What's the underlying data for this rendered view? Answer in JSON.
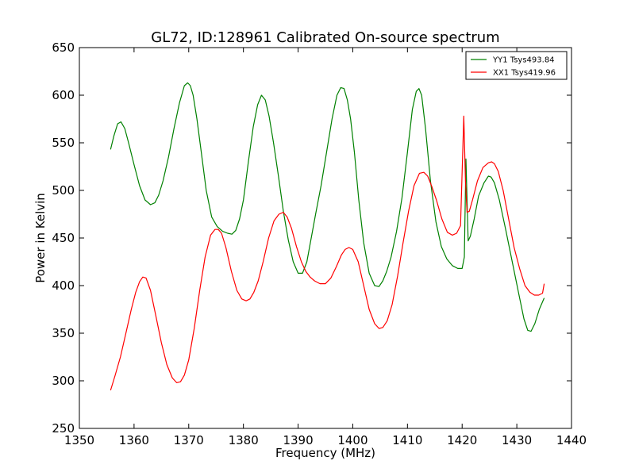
{
  "chart_data": {
    "type": "line",
    "title": "GL72, ID:128961 Calibrated On-source spectrum",
    "xlabel": "Frequency (MHz)",
    "ylabel": "Power in Kelvin",
    "xlim": [
      1350,
      1440
    ],
    "ylim": [
      250,
      650
    ],
    "xticks": [
      1350,
      1360,
      1370,
      1380,
      1390,
      1400,
      1410,
      1420,
      1430,
      1440
    ],
    "yticks": [
      250,
      300,
      350,
      400,
      450,
      500,
      550,
      600,
      650
    ],
    "grid": false,
    "legend_position": "top-right",
    "series": [
      {
        "name": "YY1 Tsys493.84",
        "color": "#008000",
        "x": [
          1355.7,
          1356.3,
          1357.0,
          1357.6,
          1358.3,
          1359.0,
          1360.0,
          1361.0,
          1362.0,
          1363.0,
          1363.8,
          1364.5,
          1365.3,
          1366.3,
          1367.3,
          1368.3,
          1369.2,
          1369.8,
          1370.3,
          1370.8,
          1371.5,
          1372.3,
          1373.2,
          1374.2,
          1375.2,
          1376.2,
          1377.1,
          1377.9,
          1378.6,
          1379.3,
          1380.0,
          1380.9,
          1381.8,
          1382.6,
          1383.3,
          1384.0,
          1384.7,
          1385.5,
          1386.4,
          1387.3,
          1388.2,
          1389.1,
          1390.0,
          1390.8,
          1391.6,
          1392.4,
          1393.2,
          1394.2,
          1395.2,
          1396.2,
          1397.1,
          1397.8,
          1398.4,
          1399.0,
          1399.6,
          1400.3,
          1401.1,
          1402.0,
          1403.0,
          1404.0,
          1404.8,
          1405.5,
          1406.2,
          1407.0,
          1408.0,
          1409.0,
          1410.0,
          1410.9,
          1411.6,
          1412.1,
          1412.6,
          1413.3,
          1414.2,
          1415.2,
          1416.2,
          1417.2,
          1418.2,
          1419.2,
          1420.0,
          1420.4,
          1420.7,
          1421.1,
          1421.5,
          1422.2,
          1423.0,
          1424.0,
          1424.8,
          1425.3,
          1425.9,
          1426.8,
          1428.0,
          1429.2,
          1430.4,
          1431.3,
          1432.0,
          1432.6,
          1433.3,
          1434.1,
          1435.0
        ],
        "values": [
          543,
          557,
          570,
          572,
          565,
          550,
          527,
          505,
          490,
          485,
          487,
          495,
          510,
          535,
          565,
          592,
          610,
          613,
          610,
          600,
          575,
          540,
          500,
          472,
          462,
          457,
          455,
          454,
          458,
          470,
          490,
          530,
          567,
          590,
          600,
          595,
          578,
          550,
          515,
          478,
          448,
          425,
          413,
          413,
          425,
          450,
          475,
          505,
          540,
          575,
          600,
          608,
          607,
          595,
          575,
          540,
          490,
          445,
          413,
          400,
          399,
          405,
          415,
          430,
          457,
          492,
          540,
          585,
          604,
          607,
          600,
          565,
          510,
          467,
          441,
          428,
          421,
          418,
          418,
          430,
          533,
          447,
          452,
          470,
          494,
          508,
          515,
          514,
          508,
          490,
          458,
          424,
          390,
          365,
          353,
          352,
          360,
          375,
          387
        ]
      },
      {
        "name": "XX1 Tsys419.96",
        "color": "#ff0000",
        "x": [
          1355.7,
          1356.5,
          1357.5,
          1358.5,
          1359.5,
          1360.3,
          1361.0,
          1361.6,
          1362.2,
          1363.0,
          1364.0,
          1365.0,
          1366.0,
          1367.0,
          1367.8,
          1368.5,
          1369.2,
          1370.0,
          1371.0,
          1372.0,
          1373.0,
          1374.0,
          1374.8,
          1375.4,
          1376.0,
          1376.8,
          1377.8,
          1378.8,
          1379.7,
          1380.5,
          1381.2,
          1381.9,
          1382.7,
          1383.6,
          1384.6,
          1385.6,
          1386.5,
          1387.3,
          1388.0,
          1388.8,
          1389.7,
          1390.6,
          1391.4,
          1392.2,
          1393.0,
          1394.0,
          1395.0,
          1396.0,
          1397.0,
          1397.9,
          1398.6,
          1399.3,
          1400.0,
          1401.0,
          1402.0,
          1403.0,
          1404.0,
          1404.8,
          1405.5,
          1406.3,
          1407.2,
          1408.2,
          1409.2,
          1410.2,
          1411.2,
          1412.2,
          1413.0,
          1413.7,
          1414.4,
          1415.3,
          1416.3,
          1417.3,
          1418.2,
          1419.0,
          1419.7,
          1420.3,
          1420.6,
          1420.9,
          1421.3,
          1421.9,
          1422.8,
          1423.8,
          1424.8,
          1425.4,
          1425.9,
          1426.6,
          1427.5,
          1428.5,
          1429.5,
          1430.5,
          1431.5,
          1432.4,
          1433.2,
          1434.0,
          1434.7,
          1435.0
        ],
        "values": [
          290,
          305,
          325,
          350,
          375,
          393,
          404,
          409,
          408,
          395,
          368,
          340,
          317,
          303,
          298,
          299,
          306,
          322,
          355,
          395,
          430,
          453,
          459,
          459,
          455,
          440,
          415,
          395,
          386,
          384,
          386,
          393,
          405,
          425,
          450,
          468,
          475,
          477,
          472,
          460,
          441,
          425,
          415,
          409,
          405,
          402,
          402,
          408,
          420,
          432,
          438,
          440,
          438,
          425,
          400,
          375,
          360,
          355,
          356,
          363,
          380,
          410,
          445,
          478,
          505,
          518,
          519,
          515,
          505,
          490,
          470,
          456,
          453,
          455,
          463,
          578,
          510,
          477,
          478,
          490,
          510,
          524,
          529,
          530,
          528,
          520,
          500,
          470,
          440,
          418,
          400,
          393,
          390,
          390,
          392,
          402
        ]
      }
    ]
  }
}
